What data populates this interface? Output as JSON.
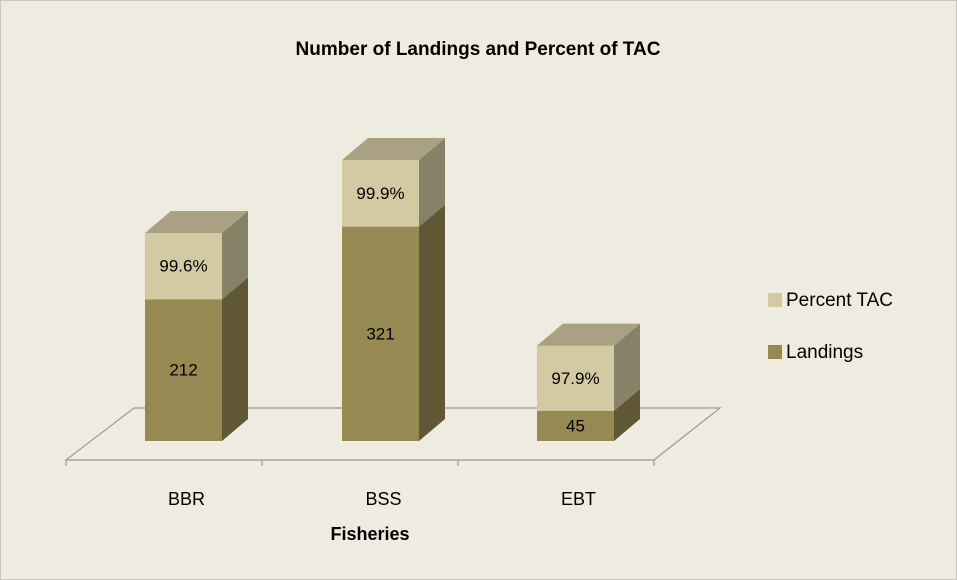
{
  "chart_data": {
    "type": "bar3d_stacked",
    "title": "Number of Landings and Percent of TAC",
    "x_label": "Fisheries",
    "categories": [
      "BBR",
      "BSS",
      "EBT"
    ],
    "series": [
      {
        "name": "Landings",
        "color": "#968a52",
        "values": [
          212,
          321,
          45
        ]
      },
      {
        "name": "Percent TAC",
        "color": "#d3c9a2",
        "values": [
          99.6,
          99.9,
          97.9
        ],
        "value_labels": [
          "99.6%",
          "99.9%",
          "97.9%"
        ]
      }
    ],
    "legend": "right"
  }
}
